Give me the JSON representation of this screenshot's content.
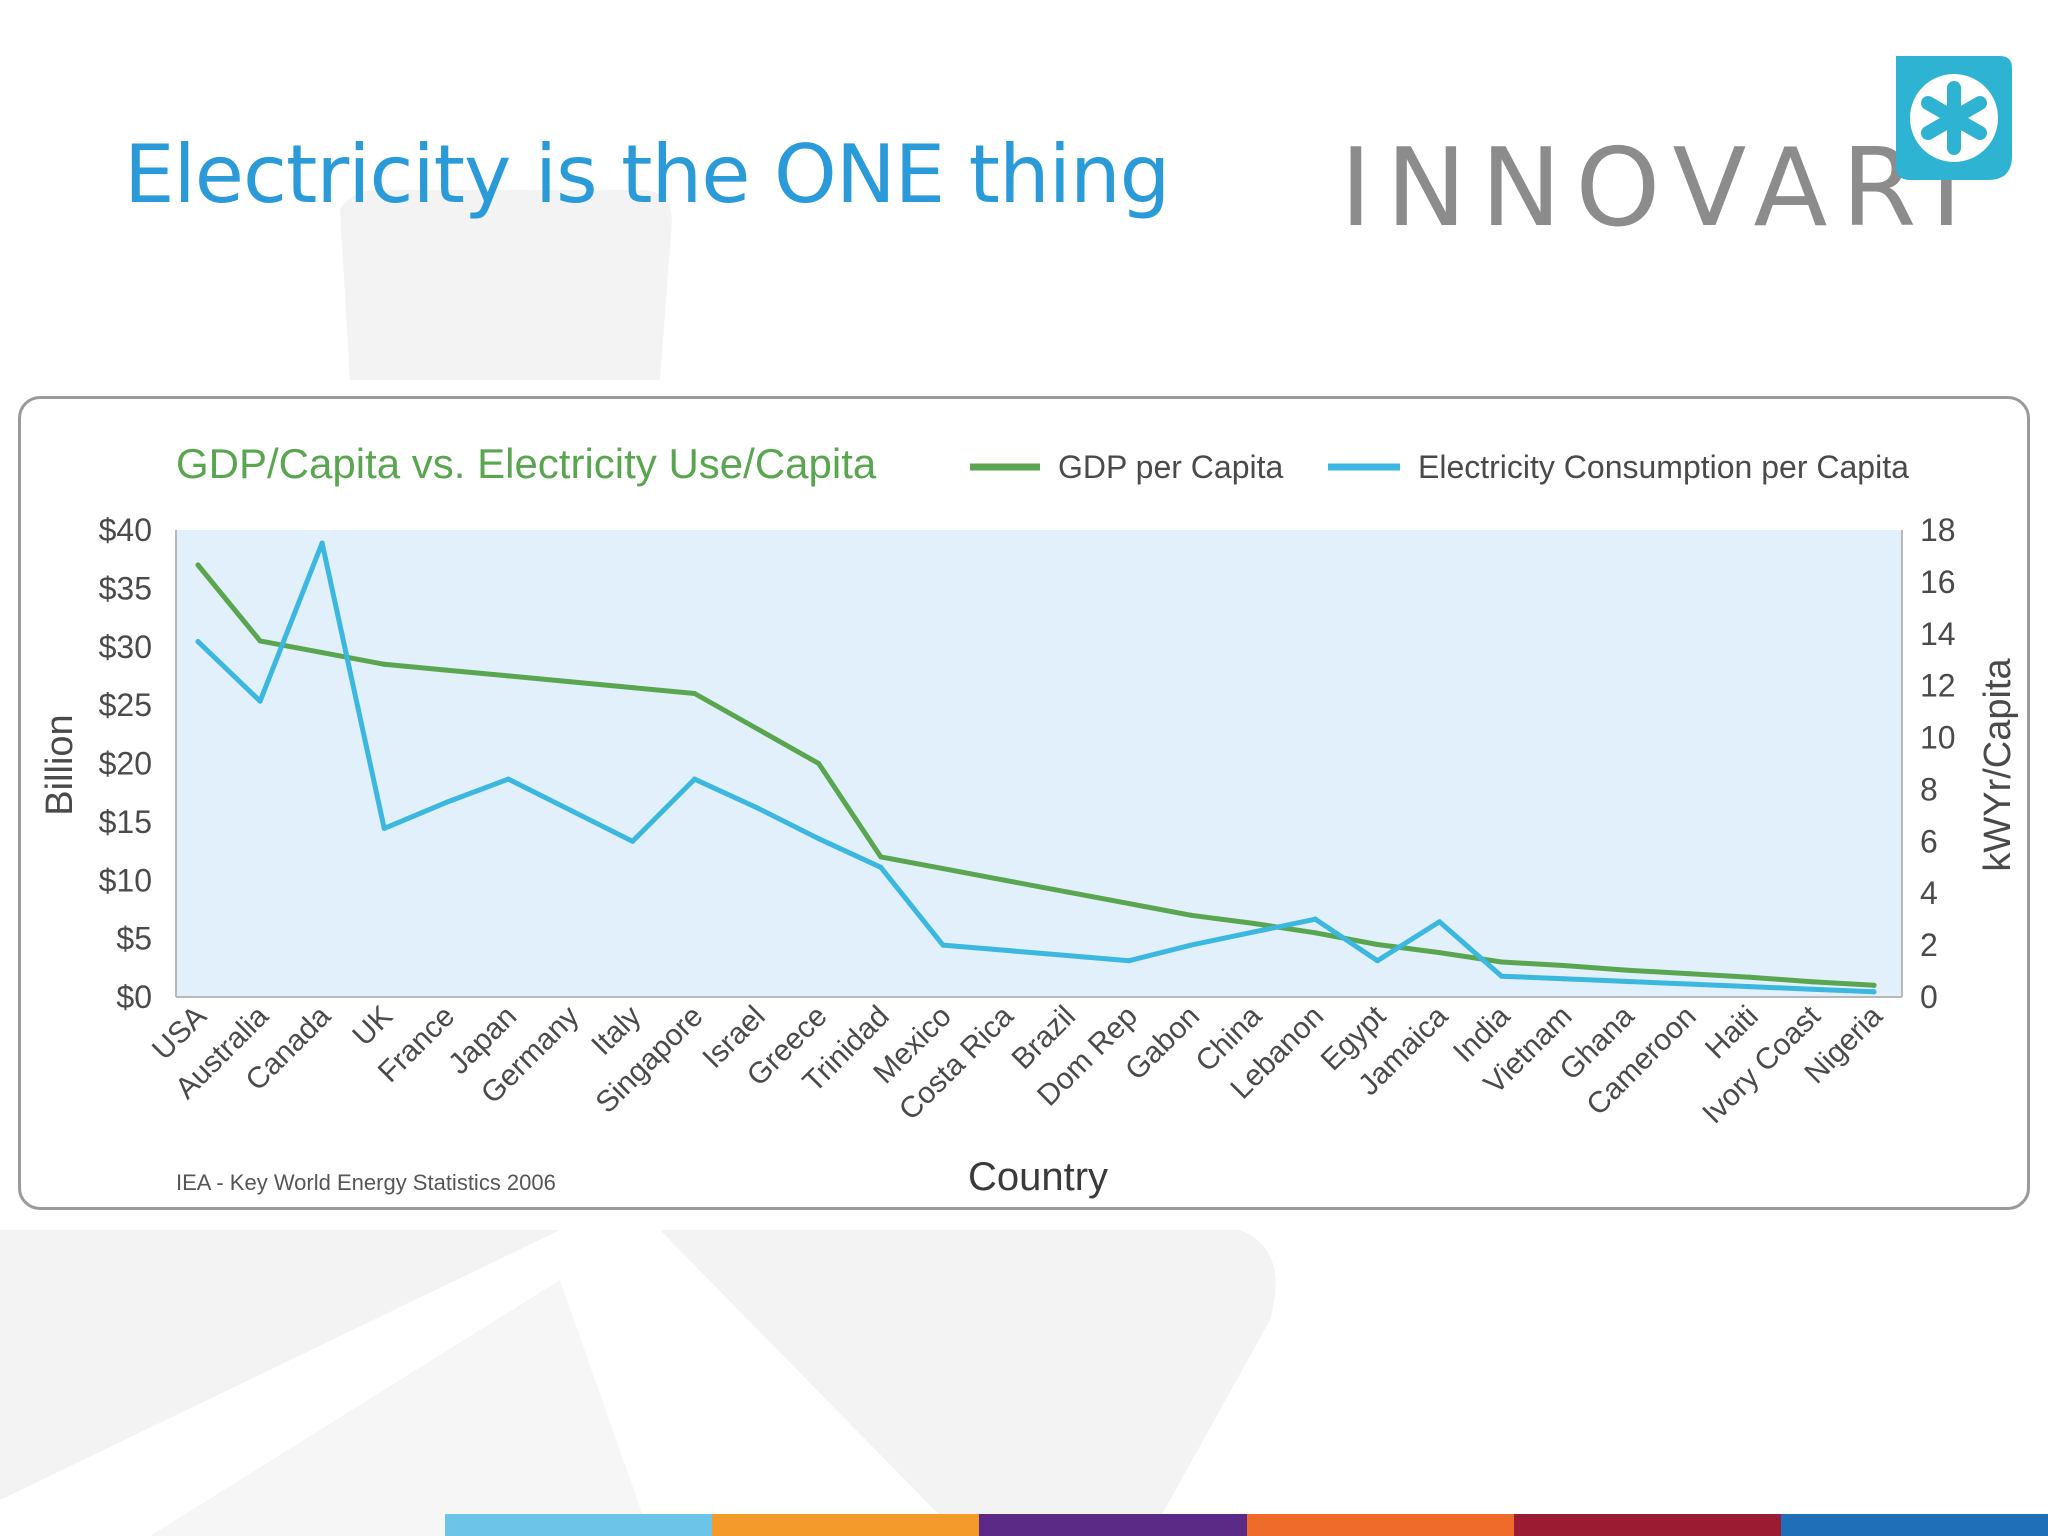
{
  "slide": {
    "title": "Electricity is the ONE thing",
    "logo_text": "INNOVARI",
    "logo_icon": "asterisk-icon",
    "brand_color": "#2a9bd8",
    "bottom_bar_colors": [
      "#6cc4e8",
      "#f39a2b",
      "#5b2a86",
      "#ef6b2a",
      "#9b1b32",
      "#1e6fb8"
    ]
  },
  "chart_data": {
    "type": "line",
    "title": "GDP/Capita vs. Electricity Use/Capita",
    "xlabel": "Country",
    "ylabel_left": "Billion",
    "ylabel_right": "kWYr/Capita",
    "source": "IEA - Key World Energy Statistics 2006",
    "categories": [
      "USA",
      "Australia",
      "Canada",
      "UK",
      "France",
      "Japan",
      "Germany",
      "Italy",
      "Singapore",
      "Israel",
      "Greece",
      "Trinidad",
      "Mexico",
      "Costa Rica",
      "Brazil",
      "Dom Rep",
      "Gabon",
      "China",
      "Lebanon",
      "Egypt",
      "Jamaica",
      "India",
      "Vietnam",
      "Ghana",
      "Cameroon",
      "Haiti",
      "Ivory Coast",
      "Nigeria"
    ],
    "left_ticks": [
      "$0",
      "$5",
      "$10",
      "$15",
      "$20",
      "$25",
      "$30",
      "$35",
      "$40"
    ],
    "right_ticks": [
      "0",
      "2",
      "4",
      "6",
      "8",
      "10",
      "12",
      "14",
      "16",
      "18"
    ],
    "ylim_left": [
      0,
      40
    ],
    "ylim_right": [
      0,
      18
    ],
    "legend_position": "top-right",
    "plot_background": "#e1f0fb",
    "series": [
      {
        "name": "GDP per Capita",
        "axis": "left",
        "color": "#5aa54f",
        "values": [
          37,
          30.5,
          29.5,
          28.5,
          28,
          27.5,
          27,
          26.5,
          26,
          23,
          20,
          12,
          11,
          10,
          9,
          8,
          7,
          6.3,
          5.5,
          4.5,
          3.8,
          3,
          2.7,
          2.3,
          2,
          1.7,
          1.3,
          1
        ]
      },
      {
        "name": "Electricity Consumption per Capita",
        "axis": "right",
        "color": "#3bb7e0",
        "values": [
          13.7,
          11.4,
          17.5,
          6.5,
          7.5,
          8.4,
          7.2,
          6,
          8.4,
          7.3,
          6.1,
          5,
          2,
          1.8,
          1.6,
          1.4,
          2,
          2.5,
          3,
          1.4,
          2.9,
          0.8,
          0.7,
          0.6,
          0.5,
          0.4,
          0.3,
          0.2
        ]
      }
    ]
  }
}
